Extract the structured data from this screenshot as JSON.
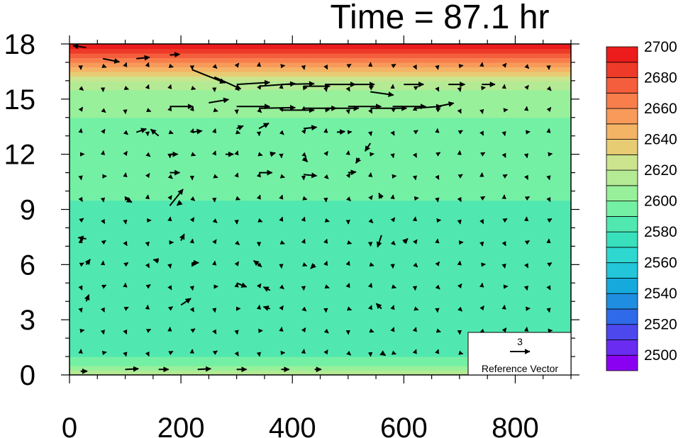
{
  "chart_data": {
    "type": "heatmap",
    "title": "Time = 87.1 hr",
    "xlabel": "",
    "ylabel": "",
    "xlim": [
      0,
      900
    ],
    "ylim": [
      0,
      18
    ],
    "x_ticks": [
      "0",
      "200",
      "400",
      "600",
      "800"
    ],
    "y_ticks": [
      "0",
      "3",
      "6",
      "9",
      "12",
      "15",
      "18"
    ],
    "colorbar": {
      "levels": [
        2500,
        2510,
        2520,
        2530,
        2540,
        2550,
        2560,
        2570,
        2580,
        2590,
        2600,
        2610,
        2620,
        2630,
        2640,
        2650,
        2660,
        2670,
        2680,
        2690,
        2700
      ],
      "labels": [
        "2500",
        "2520",
        "2540",
        "2560",
        "2580",
        "2600",
        "2620",
        "2640",
        "2660",
        "2680",
        "2700"
      ],
      "colors": [
        "#8a00f0",
        "#6a2cf0",
        "#4c48ee",
        "#2f6ae8",
        "#1f8ee0",
        "#16aadc",
        "#22c6d8",
        "#2ed8d0",
        "#38e0bc",
        "#50e8b0",
        "#74f0a4",
        "#98f09a",
        "#b4ea94",
        "#cce48e",
        "#e8cc74",
        "#f4b466",
        "#f89a5a",
        "#f87e4c",
        "#f45e3c",
        "#ee3a28",
        "#ec1c1c"
      ]
    },
    "field_profile": {
      "z": [
        0,
        0.5,
        1,
        2,
        3,
        5,
        7,
        9,
        10,
        11,
        12,
        13,
        14,
        15,
        15.5,
        16,
        16.5,
        17,
        17.5,
        18
      ],
      "theta": [
        2630,
        2612,
        2596,
        2592,
        2595,
        2593,
        2592,
        2594,
        2604,
        2605,
        2606,
        2607,
        2610,
        2613,
        2620,
        2630,
        2650,
        2672,
        2694,
        2702
      ]
    },
    "reference_vector": {
      "value": "3",
      "label": "Reference Vector"
    },
    "vectors": [
      {
        "x": 30,
        "y": 17.8,
        "u": -2.0,
        "v": 0.3
      },
      {
        "x": 60,
        "y": 17.2,
        "u": 2.5,
        "v": -0.5
      },
      {
        "x": 120,
        "y": 17.2,
        "u": 2.0,
        "v": 0.2
      },
      {
        "x": 180,
        "y": 17.4,
        "u": 1.5,
        "v": 0.1
      },
      {
        "x": 220,
        "y": 16.6,
        "u": 5.0,
        "v": -2.0
      },
      {
        "x": 260,
        "y": 16.2,
        "u": 4.0,
        "v": -1.8
      },
      {
        "x": 300,
        "y": 15.8,
        "u": 5.0,
        "v": 0.3
      },
      {
        "x": 340,
        "y": 15.7,
        "u": 5.5,
        "v": 0.4
      },
      {
        "x": 380,
        "y": 15.8,
        "u": 5.0,
        "v": 0.1
      },
      {
        "x": 420,
        "y": 15.7,
        "u": 4.0,
        "v": 0.0
      },
      {
        "x": 460,
        "y": 15.8,
        "u": 4.5,
        "v": 0.0
      },
      {
        "x": 500,
        "y": 15.8,
        "u": 4.0,
        "v": 0.0
      },
      {
        "x": 540,
        "y": 15.4,
        "u": 3.5,
        "v": -0.5
      },
      {
        "x": 600,
        "y": 15.8,
        "u": 3.0,
        "v": 0.0
      },
      {
        "x": 680,
        "y": 15.8,
        "u": 2.5,
        "v": 0.0
      },
      {
        "x": 740,
        "y": 15.8,
        "u": 2.0,
        "v": 0.0
      },
      {
        "x": 180,
        "y": 14.6,
        "u": 3.5,
        "v": 0.0
      },
      {
        "x": 250,
        "y": 14.8,
        "u": 3.0,
        "v": 0.5
      },
      {
        "x": 300,
        "y": 14.6,
        "u": 5.0,
        "v": 0.0
      },
      {
        "x": 340,
        "y": 14.5,
        "u": 5.5,
        "v": 0.1
      },
      {
        "x": 380,
        "y": 14.4,
        "u": 5.0,
        "v": 0.0
      },
      {
        "x": 420,
        "y": 14.5,
        "u": 5.0,
        "v": 0.0
      },
      {
        "x": 460,
        "y": 14.5,
        "u": 5.0,
        "v": 0.0
      },
      {
        "x": 500,
        "y": 14.6,
        "u": 5.0,
        "v": 0.0
      },
      {
        "x": 540,
        "y": 14.5,
        "u": 5.5,
        "v": 0.0
      },
      {
        "x": 580,
        "y": 14.6,
        "u": 5.0,
        "v": 0.0
      },
      {
        "x": 620,
        "y": 14.5,
        "u": 4.0,
        "v": 0.3
      },
      {
        "x": 660,
        "y": 14.6,
        "u": 2.5,
        "v": 0.5
      },
      {
        "x": 120,
        "y": 13.2,
        "u": 1.5,
        "v": 0.5
      },
      {
        "x": 160,
        "y": 13.0,
        "u": -1.2,
        "v": 1.0
      },
      {
        "x": 220,
        "y": 13.2,
        "u": 1.5,
        "v": 0.2
      },
      {
        "x": 300,
        "y": 13.4,
        "u": 1.0,
        "v": 0.4
      },
      {
        "x": 340,
        "y": 13.4,
        "u": 1.5,
        "v": 0.8
      },
      {
        "x": 420,
        "y": 13.4,
        "u": 2.0,
        "v": 0.2
      },
      {
        "x": 480,
        "y": 13.2,
        "u": 1.2,
        "v": 0.1
      },
      {
        "x": 540,
        "y": 12.6,
        "u": -0.8,
        "v": -1.2
      },
      {
        "x": 180,
        "y": 12.0,
        "u": 1.2,
        "v": 0.0
      },
      {
        "x": 280,
        "y": 12.0,
        "u": 1.2,
        "v": 0.0
      },
      {
        "x": 360,
        "y": 12.0,
        "u": 0.8,
        "v": 0.2
      },
      {
        "x": 420,
        "y": 11.8,
        "u": 0.6,
        "v": -0.6
      },
      {
        "x": 520,
        "y": 11.8,
        "u": -0.5,
        "v": -0.8
      },
      {
        "x": 180,
        "y": 11.0,
        "u": 1.5,
        "v": 0.0
      },
      {
        "x": 340,
        "y": 11.0,
        "u": 2.0,
        "v": 0.0
      },
      {
        "x": 420,
        "y": 10.9,
        "u": 2.0,
        "v": -0.2
      },
      {
        "x": 500,
        "y": 11.0,
        "u": 1.2,
        "v": 0.1
      },
      {
        "x": 180,
        "y": 9.2,
        "u": 2.0,
        "v": 2.5
      },
      {
        "x": 100,
        "y": 9.6,
        "u": 1.0,
        "v": -0.6
      },
      {
        "x": 200,
        "y": 9.4,
        "u": -0.6,
        "v": -0.5
      },
      {
        "x": 560,
        "y": 9.6,
        "u": -0.4,
        "v": 0.8
      },
      {
        "x": 30,
        "y": 7.4,
        "u": -1.2,
        "v": 0.2
      },
      {
        "x": 200,
        "y": 7.3,
        "u": 0.5,
        "v": 1.0
      },
      {
        "x": 560,
        "y": 7.6,
        "u": -0.6,
        "v": -1.8
      },
      {
        "x": 600,
        "y": 7.2,
        "u": 0.6,
        "v": 0.6
      },
      {
        "x": 30,
        "y": 6.0,
        "u": 0.6,
        "v": 0.8
      },
      {
        "x": 160,
        "y": 6.2,
        "u": -0.8,
        "v": 0.2
      },
      {
        "x": 220,
        "y": 6.1,
        "u": 1.0,
        "v": 0.0
      },
      {
        "x": 340,
        "y": 6.0,
        "u": -0.8,
        "v": 0.6
      },
      {
        "x": 440,
        "y": 6.0,
        "u": -0.6,
        "v": -0.6
      },
      {
        "x": 300,
        "y": 5.0,
        "u": 1.5,
        "v": -0.6
      },
      {
        "x": 360,
        "y": 4.6,
        "u": -1.0,
        "v": 0.5
      },
      {
        "x": 200,
        "y": 3.8,
        "u": 1.5,
        "v": 1.0
      },
      {
        "x": 360,
        "y": 3.6,
        "u": -1.0,
        "v": 0.3
      },
      {
        "x": 560,
        "y": 3.6,
        "u": -0.8,
        "v": 0.8
      },
      {
        "x": 30,
        "y": 4.0,
        "u": 0.4,
        "v": 1.0
      },
      {
        "x": 20,
        "y": 0.2,
        "u": 1.0,
        "v": 0.0
      },
      {
        "x": 100,
        "y": 0.3,
        "u": 2.0,
        "v": 0.1
      },
      {
        "x": 160,
        "y": 0.3,
        "u": 1.5,
        "v": 0.0
      },
      {
        "x": 230,
        "y": 0.3,
        "u": 2.0,
        "v": 0.1
      },
      {
        "x": 300,
        "y": 0.3,
        "u": 1.5,
        "v": 0.0
      },
      {
        "x": 380,
        "y": 0.3,
        "u": 1.2,
        "v": 0.0
      },
      {
        "x": 440,
        "y": 0.3,
        "u": 1.0,
        "v": 0.0
      },
      {
        "x": 560,
        "y": 1.2,
        "u": 0.6,
        "v": -0.4
      }
    ]
  }
}
